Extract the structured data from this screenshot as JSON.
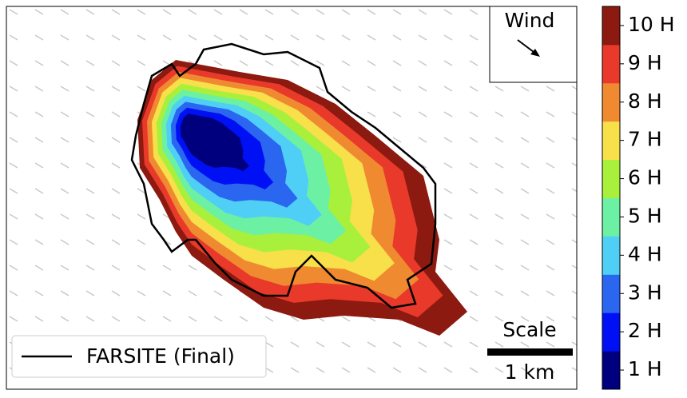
{
  "legend": {
    "label": "FARSITE (Final)"
  },
  "wind": {
    "label": "Wind"
  },
  "scale": {
    "title": "Scale",
    "label": "1 km"
  },
  "colorbar": {
    "labels": [
      "1 H",
      "2 H",
      "3 H",
      "4 H",
      "5 H",
      "6 H",
      "7 H",
      "8 H",
      "9 H",
      "10 H"
    ],
    "colors": [
      "#00007f",
      "#0010f5",
      "#2a66f0",
      "#4fcff5",
      "#6cf0a4",
      "#a8f03c",
      "#f7e04a",
      "#f08a30",
      "#e8392a",
      "#8c1a10"
    ]
  }
}
